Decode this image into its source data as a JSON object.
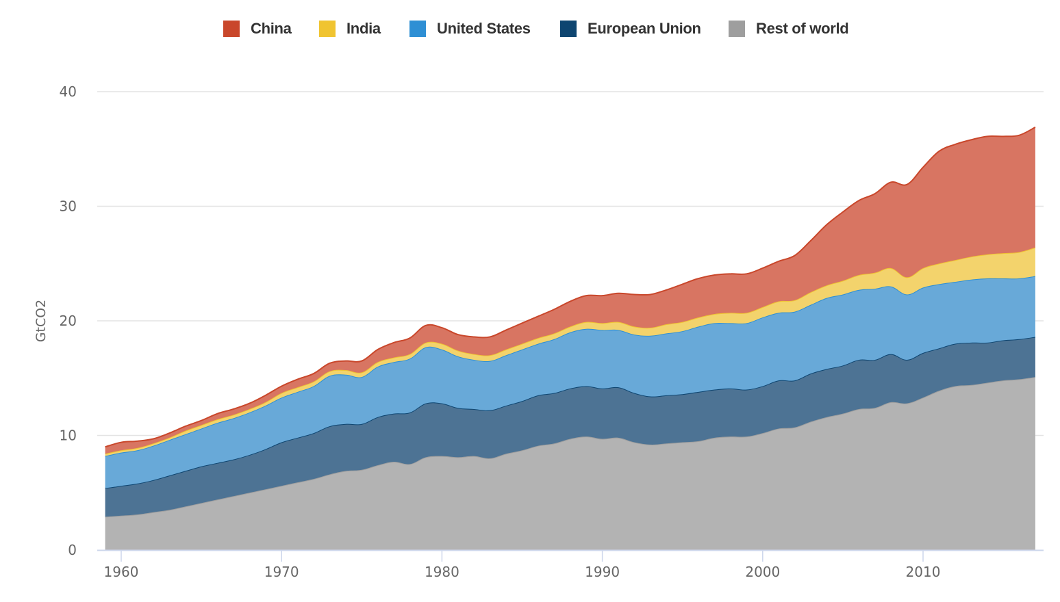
{
  "chart_data": {
    "type": "area",
    "stacked": true,
    "title": "",
    "xlabel": "",
    "ylabel": "GtCO2",
    "xlim": [
      1959,
      2017
    ],
    "ylim": [
      0,
      40
    ],
    "x_ticks": [
      1960,
      1970,
      1980,
      1990,
      2000,
      2010
    ],
    "y_ticks": [
      0,
      10,
      20,
      30,
      40
    ],
    "grid": "horizontal",
    "legend_position": "top-center",
    "x": [
      1959,
      1960,
      1961,
      1962,
      1963,
      1964,
      1965,
      1966,
      1967,
      1968,
      1969,
      1970,
      1971,
      1972,
      1973,
      1974,
      1975,
      1976,
      1977,
      1978,
      1979,
      1980,
      1981,
      1982,
      1983,
      1984,
      1985,
      1986,
      1987,
      1988,
      1989,
      1990,
      1991,
      1992,
      1993,
      1994,
      1995,
      1996,
      1997,
      1998,
      1999,
      2000,
      2001,
      2002,
      2003,
      2004,
      2005,
      2006,
      2007,
      2008,
      2009,
      2010,
      2011,
      2012,
      2013,
      2014,
      2015,
      2016,
      2017
    ],
    "series": [
      {
        "name": "Rest of world",
        "color": "#9e9e9e",
        "fill": "#b3b3b3",
        "values": [
          2.9,
          3.0,
          3.1,
          3.3,
          3.5,
          3.8,
          4.1,
          4.4,
          4.7,
          5.0,
          5.3,
          5.6,
          5.9,
          6.2,
          6.6,
          6.9,
          7.0,
          7.4,
          7.7,
          7.5,
          8.1,
          8.2,
          8.1,
          8.2,
          8.0,
          8.4,
          8.7,
          9.1,
          9.3,
          9.7,
          9.9,
          9.7,
          9.8,
          9.4,
          9.2,
          9.3,
          9.4,
          9.5,
          9.8,
          9.9,
          9.9,
          10.2,
          10.6,
          10.7,
          11.2,
          11.6,
          11.9,
          12.3,
          12.4,
          12.9,
          12.8,
          13.3,
          13.9,
          14.3,
          14.4,
          14.6,
          14.8,
          14.9,
          15.1
        ]
      },
      {
        "name": "European Union",
        "color": "#0e4570",
        "fill": "#4d7394",
        "values": [
          2.5,
          2.6,
          2.7,
          2.8,
          3.0,
          3.1,
          3.2,
          3.2,
          3.2,
          3.3,
          3.5,
          3.8,
          3.9,
          4.0,
          4.2,
          4.1,
          4.0,
          4.2,
          4.2,
          4.5,
          4.7,
          4.6,
          4.3,
          4.1,
          4.2,
          4.2,
          4.3,
          4.4,
          4.4,
          4.4,
          4.4,
          4.4,
          4.4,
          4.3,
          4.2,
          4.2,
          4.2,
          4.3,
          4.2,
          4.2,
          4.1,
          4.1,
          4.2,
          4.1,
          4.2,
          4.2,
          4.2,
          4.3,
          4.2,
          4.2,
          3.8,
          3.9,
          3.7,
          3.7,
          3.7,
          3.5,
          3.5,
          3.5,
          3.5
        ]
      },
      {
        "name": "United States",
        "color": "#2e8fd4",
        "fill": "#68a9d8",
        "values": [
          2.8,
          2.9,
          2.9,
          3.0,
          3.1,
          3.2,
          3.3,
          3.5,
          3.6,
          3.7,
          3.8,
          3.9,
          4.0,
          4.1,
          4.4,
          4.3,
          4.1,
          4.4,
          4.5,
          4.7,
          4.9,
          4.7,
          4.5,
          4.3,
          4.3,
          4.4,
          4.5,
          4.5,
          4.7,
          4.9,
          5.0,
          5.1,
          5.0,
          5.1,
          5.3,
          5.4,
          5.5,
          5.7,
          5.8,
          5.7,
          5.8,
          6.0,
          5.9,
          6.0,
          6.0,
          6.2,
          6.2,
          6.1,
          6.2,
          5.9,
          5.7,
          5.7,
          5.6,
          5.4,
          5.5,
          5.6,
          5.4,
          5.3,
          5.3
        ]
      },
      {
        "name": "India",
        "color": "#f0c431",
        "fill": "#f3d36c",
        "values": [
          0.2,
          0.2,
          0.2,
          0.2,
          0.2,
          0.3,
          0.3,
          0.3,
          0.3,
          0.3,
          0.3,
          0.4,
          0.4,
          0.4,
          0.4,
          0.4,
          0.4,
          0.4,
          0.4,
          0.4,
          0.4,
          0.5,
          0.5,
          0.5,
          0.5,
          0.5,
          0.5,
          0.5,
          0.5,
          0.5,
          0.6,
          0.6,
          0.7,
          0.7,
          0.7,
          0.8,
          0.8,
          0.8,
          0.8,
          0.9,
          0.9,
          0.9,
          1.0,
          1.0,
          1.1,
          1.1,
          1.2,
          1.3,
          1.4,
          1.6,
          1.5,
          1.7,
          1.8,
          1.9,
          2.0,
          2.1,
          2.2,
          2.3,
          2.5
        ]
      },
      {
        "name": "China",
        "color": "#c9472b",
        "fill": "#d87562",
        "values": [
          0.6,
          0.7,
          0.6,
          0.4,
          0.4,
          0.4,
          0.4,
          0.5,
          0.5,
          0.5,
          0.6,
          0.6,
          0.7,
          0.7,
          0.7,
          0.8,
          1.0,
          1.1,
          1.3,
          1.4,
          1.5,
          1.4,
          1.4,
          1.5,
          1.6,
          1.7,
          1.8,
          1.9,
          2.1,
          2.2,
          2.3,
          2.4,
          2.5,
          2.8,
          2.9,
          3.0,
          3.3,
          3.4,
          3.4,
          3.4,
          3.4,
          3.4,
          3.5,
          3.9,
          4.5,
          5.3,
          6.0,
          6.5,
          6.9,
          7.5,
          8.1,
          8.8,
          9.8,
          10.1,
          10.2,
          10.3,
          10.2,
          10.2,
          10.5
        ]
      }
    ],
    "legend": [
      "China",
      "India",
      "United States",
      "European Union",
      "Rest of world"
    ]
  },
  "legend_items": [
    {
      "label": "China",
      "color": "#c9472b"
    },
    {
      "label": "India",
      "color": "#f0c431"
    },
    {
      "label": "United States",
      "color": "#2e8fd4"
    },
    {
      "label": "European Union",
      "color": "#0e4570"
    },
    {
      "label": "Rest of world",
      "color": "#9e9e9e"
    }
  ]
}
